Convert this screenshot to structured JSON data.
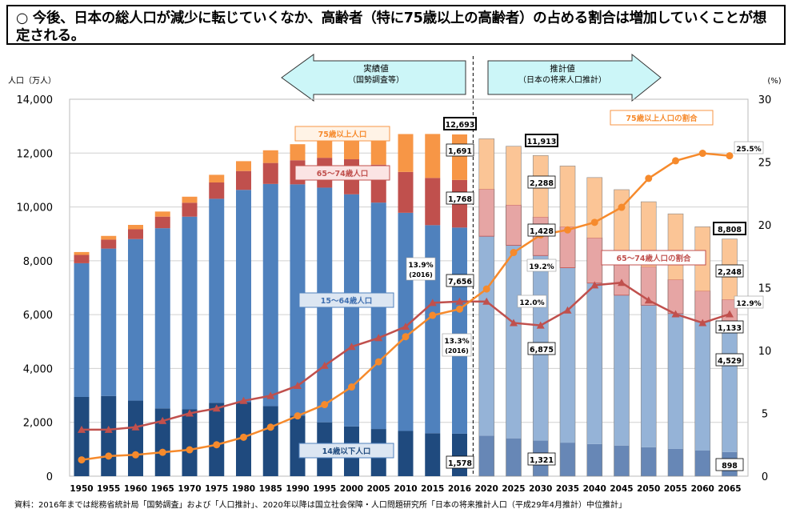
{
  "title": "○ 今後、日本の総人口が減少に転じていくなか、高齢者（特に75歳以上の高齢者）の占める割合は増加していくことが想定される。",
  "source": "資料：2016年までは総務省統計局「国勢調査」および「人口推計」、2020年以降は国立社会保障・人口問題研究所「日本の将来推計人口（平成29年4月推計）中位推計」",
  "arrows": {
    "actual": {
      "line1": "実績値",
      "line2": "（国勢調査等）"
    },
    "projection": {
      "line1": "推計値",
      "line2": "（日本の将来人口推計）"
    }
  },
  "chart_data": {
    "type": "bar+line",
    "ylabel": "人口（万人）",
    "y2label": "(%)",
    "ylim": [
      0,
      14000
    ],
    "y2lim": [
      0,
      30
    ],
    "yticks": [
      "0",
      "2,000",
      "4,000",
      "6,000",
      "8,000",
      "10,000",
      "12,000",
      "14,000"
    ],
    "y2ticks": [
      "0",
      "5",
      "10",
      "15",
      "20",
      "25",
      "30"
    ],
    "grid": true,
    "categories": [
      "1950",
      "1955",
      "1960",
      "1965",
      "1970",
      "1975",
      "1980",
      "1985",
      "1990",
      "1995",
      "2000",
      "2005",
      "2010",
      "2015",
      "2016",
      "2020",
      "2025",
      "2030",
      "2035",
      "2040",
      "2045",
      "2050",
      "2055",
      "2060",
      "2065"
    ],
    "projection_start": "2020",
    "bar_series": [
      {
        "key": "age0_14",
        "name": "14歳以下人口",
        "color": "#1f4a7e",
        "proj_color": "#6787b6",
        "values": [
          2943,
          2980,
          2807,
          2517,
          2482,
          2722,
          2751,
          2603,
          2249,
          2001,
          1847,
          1752,
          1680,
          1595,
          1578,
          1507,
          1407,
          1321,
          1246,
          1194,
          1138,
          1077,
          1012,
          951,
          898
        ]
      },
      {
        "key": "age15_64",
        "name": "15～64歳人口",
        "color": "#4f81bd",
        "proj_color": "#95b3d7",
        "values": [
          4966,
          5473,
          6000,
          6693,
          7157,
          7581,
          7883,
          8251,
          8590,
          8716,
          8622,
          8409,
          8103,
          7728,
          7656,
          7406,
          7170,
          6875,
          6494,
          5978,
          5584,
          5275,
          5028,
          4793,
          4529
        ]
      },
      {
        "key": "age65_74",
        "name": "65～74歳人口",
        "color": "#c0504d",
        "proj_color": "#e6a5a4",
        "values": [
          309,
          332,
          363,
          430,
          517,
          606,
          700,
          779,
          894,
          1109,
          1301,
          1407,
          1517,
          1755,
          1768,
          1747,
          1497,
          1428,
          1522,
          1681,
          1643,
          1424,
          1258,
          1133,
          1133
        ]
      },
      {
        "key": "age75",
        "name": "75歳以上人口",
        "color": "#f79646",
        "proj_color": "#fbc596",
        "values": [
          107,
          139,
          163,
          189,
          224,
          284,
          366,
          471,
          597,
          717,
          901,
          1160,
          1407,
          1632,
          1691,
          1872,
          2180,
          2288,
          2260,
          2239,
          2277,
          2417,
          2446,
          2387,
          2248
        ]
      }
    ],
    "line_series": [
      {
        "key": "ratio65_74",
        "name": "65～74歳人口の割合",
        "color": "#c0504d",
        "marker": "triangle",
        "values": [
          3.7,
          3.7,
          3.9,
          4.4,
          5.0,
          5.4,
          6.0,
          6.4,
          7.2,
          8.8,
          10.3,
          11.0,
          11.9,
          13.8,
          13.9,
          13.9,
          12.2,
          12.0,
          13.2,
          15.2,
          15.4,
          14.0,
          12.9,
          12.2,
          12.9
        ]
      },
      {
        "key": "ratio75",
        "name": "75歳以上人口の割合",
        "color": "#f68a2c",
        "marker": "circle",
        "values": [
          1.3,
          1.6,
          1.7,
          1.9,
          2.1,
          2.5,
          3.1,
          3.9,
          4.8,
          5.7,
          7.1,
          9.1,
          11.1,
          12.8,
          13.3,
          14.9,
          17.8,
          19.2,
          19.6,
          20.2,
          21.4,
          23.7,
          25.1,
          25.7,
          25.5
        ]
      }
    ],
    "data_labels": [
      {
        "year": "2016",
        "text": "12,693",
        "kind": "total"
      },
      {
        "year": "2016",
        "text": "1,691",
        "kind": "age75"
      },
      {
        "year": "2016",
        "text": "1,768",
        "kind": "age65_74"
      },
      {
        "year": "2016",
        "text": "7,656",
        "kind": "age15_64"
      },
      {
        "year": "2016",
        "text": "1,578",
        "kind": "age0_14"
      },
      {
        "year": "2030",
        "text": "11,913",
        "kind": "total"
      },
      {
        "year": "2030",
        "text": "2,288",
        "kind": "age75"
      },
      {
        "year": "2030",
        "text": "1,428",
        "kind": "age65_74"
      },
      {
        "year": "2030",
        "text": "6,875",
        "kind": "age15_64"
      },
      {
        "year": "2030",
        "text": "1,321",
        "kind": "age0_14"
      },
      {
        "year": "2065",
        "text": "8,808",
        "kind": "total"
      },
      {
        "year": "2065",
        "text": "2,248",
        "kind": "age75"
      },
      {
        "year": "2065",
        "text": "1,133",
        "kind": "age65_74"
      },
      {
        "year": "2065",
        "text": "4,529",
        "kind": "age15_64"
      },
      {
        "year": "2065",
        "text": "898",
        "kind": "age0_14"
      }
    ],
    "ratio_labels": [
      {
        "text": "13.9%",
        "sub": "(2016)",
        "series": "ratio65_74"
      },
      {
        "text": "13.3%",
        "sub": "(2016)",
        "series": "ratio75"
      },
      {
        "text": "12.0%",
        "series": "ratio65_74"
      },
      {
        "text": "19.2%",
        "series": "ratio75"
      },
      {
        "text": "25.5%",
        "series": "ratio75"
      },
      {
        "text": "12.9%",
        "series": "ratio65_74"
      }
    ]
  }
}
